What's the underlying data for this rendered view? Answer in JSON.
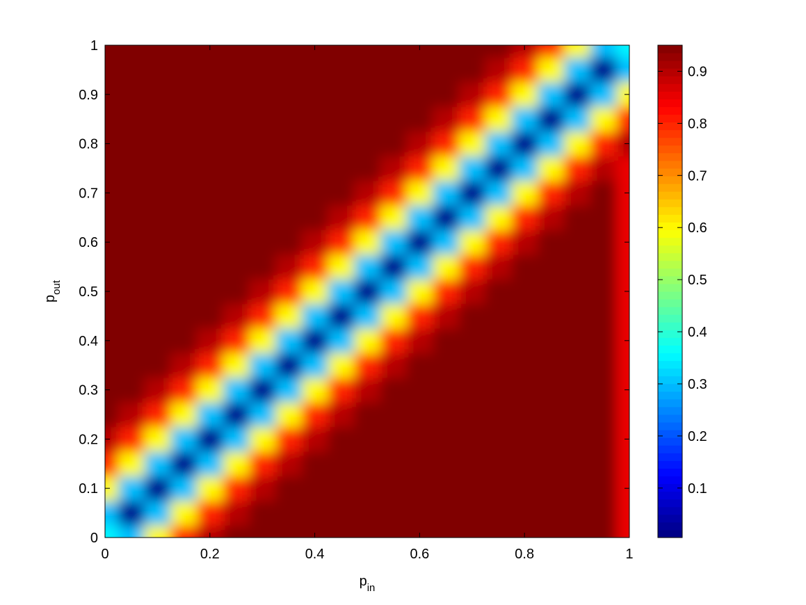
{
  "chart_data": {
    "type": "heatmap",
    "colormap": "jet",
    "xlabel": {
      "base": "p",
      "sub": "in"
    },
    "ylabel": {
      "base": "p",
      "sub": "out"
    },
    "x": [
      0,
      0.05,
      0.1,
      0.15,
      0.2,
      0.25,
      0.3,
      0.35,
      0.4,
      0.45,
      0.5,
      0.55,
      0.6,
      0.65,
      0.7,
      0.75,
      0.8,
      0.85,
      0.9,
      0.95,
      1
    ],
    "y": [
      0,
      0.05,
      0.1,
      0.15,
      0.2,
      0.25,
      0.3,
      0.35,
      0.4,
      0.45,
      0.5,
      0.55,
      0.6,
      0.65,
      0.7,
      0.75,
      0.8,
      0.85,
      0.9,
      0.95,
      1
    ],
    "z": [
      [
        0.35,
        0.3,
        0.6,
        0.8,
        0.9,
        0.95,
        0.95,
        0.95,
        0.95,
        0.95,
        0.95,
        0.95,
        0.95,
        0.95,
        0.95,
        0.95,
        0.95,
        0.95,
        0.95,
        0.95,
        0.85
      ],
      [
        0.3,
        0.02,
        0.3,
        0.6,
        0.8,
        0.9,
        0.95,
        0.95,
        0.95,
        0.95,
        0.95,
        0.95,
        0.95,
        0.95,
        0.95,
        0.95,
        0.95,
        0.95,
        0.95,
        0.95,
        0.85
      ],
      [
        0.6,
        0.3,
        0.02,
        0.3,
        0.6,
        0.8,
        0.9,
        0.95,
        0.95,
        0.95,
        0.95,
        0.95,
        0.95,
        0.95,
        0.95,
        0.95,
        0.95,
        0.95,
        0.95,
        0.95,
        0.85
      ],
      [
        0.8,
        0.6,
        0.3,
        0.02,
        0.3,
        0.6,
        0.8,
        0.9,
        0.95,
        0.95,
        0.95,
        0.95,
        0.95,
        0.95,
        0.95,
        0.95,
        0.95,
        0.95,
        0.95,
        0.95,
        0.85
      ],
      [
        0.9,
        0.8,
        0.6,
        0.3,
        0.02,
        0.3,
        0.6,
        0.8,
        0.9,
        0.95,
        0.95,
        0.95,
        0.95,
        0.95,
        0.95,
        0.95,
        0.95,
        0.95,
        0.95,
        0.95,
        0.85
      ],
      [
        0.95,
        0.9,
        0.8,
        0.6,
        0.3,
        0.02,
        0.3,
        0.6,
        0.8,
        0.9,
        0.95,
        0.95,
        0.95,
        0.95,
        0.95,
        0.95,
        0.95,
        0.95,
        0.95,
        0.95,
        0.85
      ],
      [
        0.95,
        0.95,
        0.9,
        0.8,
        0.6,
        0.3,
        0.02,
        0.3,
        0.6,
        0.8,
        0.9,
        0.95,
        0.95,
        0.95,
        0.95,
        0.95,
        0.95,
        0.95,
        0.95,
        0.95,
        0.85
      ],
      [
        0.95,
        0.95,
        0.95,
        0.9,
        0.8,
        0.6,
        0.3,
        0.02,
        0.3,
        0.6,
        0.8,
        0.9,
        0.95,
        0.95,
        0.95,
        0.95,
        0.95,
        0.95,
        0.95,
        0.95,
        0.85
      ],
      [
        0.95,
        0.95,
        0.95,
        0.95,
        0.9,
        0.8,
        0.6,
        0.3,
        0.02,
        0.3,
        0.6,
        0.8,
        0.9,
        0.95,
        0.95,
        0.95,
        0.95,
        0.95,
        0.95,
        0.95,
        0.85
      ],
      [
        0.95,
        0.95,
        0.95,
        0.95,
        0.95,
        0.9,
        0.8,
        0.6,
        0.3,
        0.02,
        0.3,
        0.6,
        0.8,
        0.9,
        0.95,
        0.95,
        0.95,
        0.95,
        0.95,
        0.95,
        0.85
      ],
      [
        0.95,
        0.95,
        0.95,
        0.95,
        0.95,
        0.95,
        0.9,
        0.8,
        0.6,
        0.3,
        0.02,
        0.3,
        0.6,
        0.8,
        0.9,
        0.95,
        0.95,
        0.95,
        0.95,
        0.95,
        0.85
      ],
      [
        0.95,
        0.95,
        0.95,
        0.95,
        0.95,
        0.95,
        0.95,
        0.9,
        0.8,
        0.6,
        0.3,
        0.02,
        0.3,
        0.6,
        0.8,
        0.9,
        0.95,
        0.95,
        0.95,
        0.95,
        0.85
      ],
      [
        0.95,
        0.95,
        0.95,
        0.95,
        0.95,
        0.95,
        0.95,
        0.95,
        0.9,
        0.8,
        0.6,
        0.3,
        0.02,
        0.3,
        0.6,
        0.8,
        0.9,
        0.95,
        0.95,
        0.95,
        0.85
      ],
      [
        0.95,
        0.95,
        0.95,
        0.95,
        0.95,
        0.95,
        0.95,
        0.95,
        0.95,
        0.9,
        0.8,
        0.6,
        0.3,
        0.02,
        0.3,
        0.6,
        0.8,
        0.9,
        0.95,
        0.95,
        0.85
      ],
      [
        0.95,
        0.95,
        0.95,
        0.95,
        0.95,
        0.95,
        0.95,
        0.95,
        0.95,
        0.95,
        0.9,
        0.8,
        0.6,
        0.3,
        0.02,
        0.3,
        0.6,
        0.8,
        0.9,
        0.95,
        0.85
      ],
      [
        0.95,
        0.95,
        0.95,
        0.95,
        0.95,
        0.95,
        0.95,
        0.95,
        0.95,
        0.95,
        0.95,
        0.9,
        0.8,
        0.6,
        0.3,
        0.02,
        0.3,
        0.6,
        0.8,
        0.9,
        0.85
      ],
      [
        0.95,
        0.95,
        0.95,
        0.95,
        0.95,
        0.95,
        0.95,
        0.95,
        0.95,
        0.95,
        0.95,
        0.95,
        0.9,
        0.8,
        0.6,
        0.3,
        0.02,
        0.3,
        0.6,
        0.8,
        0.9
      ],
      [
        0.95,
        0.95,
        0.95,
        0.95,
        0.95,
        0.95,
        0.95,
        0.95,
        0.95,
        0.95,
        0.95,
        0.95,
        0.95,
        0.9,
        0.8,
        0.6,
        0.3,
        0.02,
        0.3,
        0.6,
        0.8
      ],
      [
        0.95,
        0.95,
        0.95,
        0.95,
        0.95,
        0.95,
        0.95,
        0.95,
        0.95,
        0.95,
        0.95,
        0.95,
        0.95,
        0.95,
        0.9,
        0.8,
        0.6,
        0.3,
        0.02,
        0.3,
        0.6
      ],
      [
        0.95,
        0.95,
        0.95,
        0.95,
        0.95,
        0.95,
        0.95,
        0.95,
        0.95,
        0.95,
        0.95,
        0.95,
        0.95,
        0.95,
        0.95,
        0.9,
        0.8,
        0.6,
        0.3,
        0.02,
        0.3
      ],
      [
        0.95,
        0.95,
        0.95,
        0.95,
        0.95,
        0.95,
        0.95,
        0.95,
        0.95,
        0.95,
        0.95,
        0.95,
        0.95,
        0.95,
        0.95,
        0.95,
        0.9,
        0.8,
        0.6,
        0.3,
        0.35
      ]
    ],
    "xlim": [
      0,
      1
    ],
    "xticks": [
      0,
      0.2,
      0.4,
      0.6,
      0.8,
      1
    ],
    "ylim": [
      0,
      1
    ],
    "yticks": [
      0,
      0.1,
      0.2,
      0.3,
      0.4,
      0.5,
      0.6,
      0.7,
      0.8,
      0.9,
      1
    ],
    "clim": [
      0.005,
      0.95
    ],
    "cticks": [
      0.1,
      0.2,
      0.3,
      0.4,
      0.5,
      0.6,
      0.7,
      0.8,
      0.9
    ]
  }
}
